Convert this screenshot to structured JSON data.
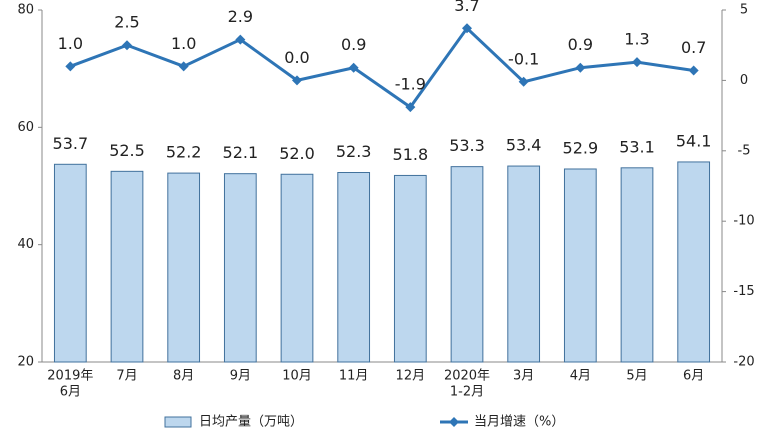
{
  "chart_data": {
    "type": "bar",
    "categories": [
      [
        "2019年",
        "6月"
      ],
      "7月",
      "8月",
      "9月",
      "10月",
      "11月",
      "12月",
      [
        "2020年",
        "1-2月"
      ],
      "3月",
      "4月",
      "5月",
      "6月"
    ],
    "series": [
      {
        "name": "日均产量（万吨）",
        "type": "bar",
        "color": "#bdd7ee",
        "stroke": "#41719c",
        "values": [
          53.7,
          52.5,
          52.2,
          52.1,
          52.0,
          52.3,
          51.8,
          53.3,
          53.4,
          52.9,
          53.1,
          54.1
        ],
        "value_labels": [
          "53.7",
          "52.5",
          "52.2",
          "52.1",
          "52.0",
          "52.3",
          "51.8",
          "53.3",
          "53.4",
          "52.9",
          "53.1",
          "54.1"
        ]
      },
      {
        "name": "当月增速（%）",
        "type": "line",
        "axis": "y2",
        "color": "#2e75b6",
        "values": [
          1.0,
          2.5,
          1.0,
          2.9,
          0.0,
          0.9,
          -1.9,
          3.7,
          -0.1,
          0.9,
          1.3,
          0.7
        ],
        "value_labels": [
          "1.0",
          "2.5",
          "1.0",
          "2.9",
          "0.0",
          "0.9",
          "-1.9",
          "3.7",
          "-0.1",
          "0.9",
          "1.3",
          "0.7"
        ]
      }
    ],
    "ylim": [
      20,
      80
    ],
    "yticks": [
      20,
      40,
      60,
      80
    ],
    "y2lim": [
      -20,
      5
    ],
    "y2ticks": [
      5,
      0,
      -5,
      -10,
      -15,
      -20
    ],
    "grid": false
  }
}
